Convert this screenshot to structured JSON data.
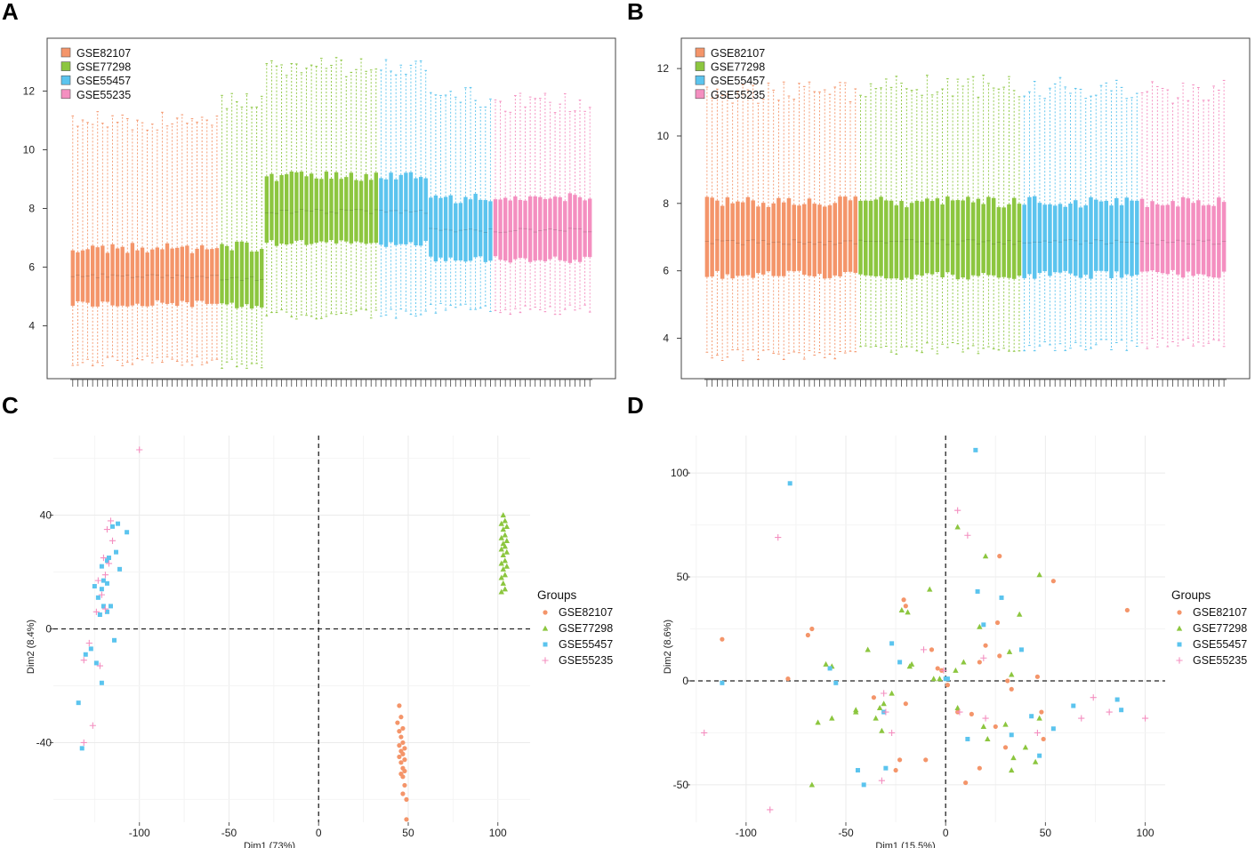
{
  "panel_labels": [
    "A",
    "B",
    "C",
    "D"
  ],
  "groups": [
    {
      "name": "GSE82107",
      "color": "#F4956A"
    },
    {
      "name": "GSE77298",
      "color": "#8CC63F"
    },
    {
      "name": "GSE55457",
      "color": "#5BC4EE"
    },
    {
      "name": "GSE55235",
      "color": "#F48FC0"
    }
  ],
  "chart_data": [
    {
      "panel": "A",
      "type": "boxplot",
      "title": "",
      "xlabel": "",
      "ylabel": "",
      "ylim": [
        2.2,
        13.8
      ],
      "yticks": [
        4,
        6,
        8,
        10,
        12
      ],
      "legend_position": "top-left",
      "series": [
        {
          "name": "GSE82107",
          "n": 30,
          "median": 5.7,
          "q1": 4.75,
          "q3": 6.65,
          "whisker_low": 2.8,
          "whisker_high": 11.0
        },
        {
          "name": "GSE77298",
          "n": 9,
          "median": 5.6,
          "q1": 4.7,
          "q3": 6.7,
          "whisker_low": 2.7,
          "whisker_high": 11.7
        },
        {
          "name": "GSE77298",
          "n": 23,
          "median": 7.9,
          "q1": 6.8,
          "q3": 9.1,
          "whisker_low": 4.4,
          "whisker_high": 12.8
        },
        {
          "name": "GSE55457",
          "n": 10,
          "median": 7.9,
          "q1": 6.8,
          "q3": 9.1,
          "whisker_low": 4.4,
          "whisker_high": 12.9
        },
        {
          "name": "GSE55457",
          "n": 13,
          "median": 7.25,
          "q1": 6.25,
          "q3": 8.35,
          "whisker_low": 4.6,
          "whisker_high": 11.8
        },
        {
          "name": "GSE55235",
          "n": 20,
          "median": 7.25,
          "q1": 6.25,
          "q3": 8.35,
          "whisker_low": 4.55,
          "whisker_high": 11.6
        }
      ]
    },
    {
      "panel": "B",
      "type": "boxplot",
      "title": "",
      "xlabel": "",
      "ylabel": "",
      "ylim": [
        2.8,
        12.9
      ],
      "yticks": [
        4,
        6,
        8,
        10,
        12
      ],
      "legend_position": "top-left",
      "series": [
        {
          "name": "GSE82107",
          "n": 30,
          "median": 6.85,
          "q1": 5.88,
          "q3": 8.05,
          "whisker_low": 3.5,
          "whisker_high": 11.3
        },
        {
          "name": "GSE77298",
          "n": 32,
          "median": 6.85,
          "q1": 5.85,
          "q3": 8.05,
          "whisker_low": 3.7,
          "whisker_high": 11.5
        },
        {
          "name": "GSE55457",
          "n": 23,
          "median": 6.85,
          "q1": 5.88,
          "q3": 8.05,
          "whisker_low": 3.8,
          "whisker_high": 11.4
        },
        {
          "name": "GSE55235",
          "n": 17,
          "median": 6.85,
          "q1": 5.9,
          "q3": 8.05,
          "whisker_low": 3.85,
          "whisker_high": 11.3
        }
      ]
    },
    {
      "panel": "C",
      "type": "scatter",
      "title": "",
      "xlabel": "Dim1 (73%)",
      "ylabel": "Dim2 (8.4%)",
      "xlim": [
        -148,
        118
      ],
      "ylim": [
        -68,
        68
      ],
      "xticks": [
        -100,
        -50,
        0,
        50,
        100
      ],
      "yticks": [
        -40,
        0,
        40
      ],
      "legend_title": "Groups",
      "legend_position": "right",
      "series": [
        {
          "name": "GSE82107",
          "marker": "circle",
          "points": [
            [
              45,
              -27
            ],
            [
              46,
              -31
            ],
            [
              44,
              -33
            ],
            [
              47,
              -35
            ],
            [
              45,
              -36
            ],
            [
              46,
              -38
            ],
            [
              47,
              -40
            ],
            [
              45,
              -41
            ],
            [
              48,
              -42
            ],
            [
              46,
              -43
            ],
            [
              47,
              -44
            ],
            [
              45,
              -45
            ],
            [
              48,
              -46
            ],
            [
              46,
              -47
            ],
            [
              47,
              -49
            ],
            [
              48,
              -50
            ],
            [
              46,
              -51
            ],
            [
              47,
              -52
            ],
            [
              48,
              -55
            ],
            [
              47,
              -58
            ],
            [
              49,
              -60
            ],
            [
              49,
              -67
            ]
          ]
        },
        {
          "name": "GSE77298",
          "marker": "triangle",
          "points": [
            [
              103,
              40
            ],
            [
              104,
              38
            ],
            [
              102,
              37
            ],
            [
              105,
              36
            ],
            [
              103,
              35
            ],
            [
              104,
              33
            ],
            [
              102,
              32
            ],
            [
              105,
              31
            ],
            [
              103,
              30
            ],
            [
              104,
              29
            ],
            [
              102,
              28
            ],
            [
              105,
              27
            ],
            [
              103,
              26
            ],
            [
              104,
              24
            ],
            [
              102,
              23
            ],
            [
              105,
              22
            ],
            [
              103,
              21
            ],
            [
              104,
              19
            ],
            [
              102,
              18
            ],
            [
              103,
              16
            ],
            [
              104,
              14
            ],
            [
              102,
              13
            ]
          ]
        },
        {
          "name": "GSE55457",
          "marker": "square",
          "points": [
            [
              -112,
              37
            ],
            [
              -107,
              34
            ],
            [
              -115,
              36
            ],
            [
              -113,
              27
            ],
            [
              -117,
              25
            ],
            [
              -118,
              24
            ],
            [
              -111,
              21
            ],
            [
              -121,
              22
            ],
            [
              -120,
              17
            ],
            [
              -118,
              16
            ],
            [
              -125,
              15
            ],
            [
              -121,
              14
            ],
            [
              -123,
              11
            ],
            [
              -116,
              8
            ],
            [
              -120,
              8
            ],
            [
              -118,
              6
            ],
            [
              -122,
              5
            ],
            [
              -114,
              -4
            ],
            [
              -127,
              -7
            ],
            [
              -124,
              -12
            ],
            [
              -130,
              -9
            ],
            [
              -121,
              -19
            ],
            [
              -134,
              -26
            ],
            [
              -132,
              -42
            ]
          ]
        },
        {
          "name": "GSE55235",
          "marker": "plus",
          "points": [
            [
              -100,
              63
            ],
            [
              -116,
              38
            ],
            [
              -118,
              35
            ],
            [
              -115,
              31
            ],
            [
              -120,
              25
            ],
            [
              -117,
              23
            ],
            [
              -119,
              19
            ],
            [
              -123,
              17
            ],
            [
              -121,
              12
            ],
            [
              -119,
              7
            ],
            [
              -124,
              6
            ],
            [
              -128,
              -5
            ],
            [
              -131,
              -11
            ],
            [
              -122,
              -13
            ],
            [
              -126,
              -34
            ],
            [
              -131,
              -40
            ]
          ]
        }
      ]
    },
    {
      "panel": "D",
      "type": "scatter",
      "title": "",
      "xlabel": "Dim1 (15.5%)",
      "ylabel": "Dim2 (8.6%)",
      "xlim": [
        -128,
        110
      ],
      "ylim": [
        -68,
        118
      ],
      "xticks": [
        -100,
        -50,
        0,
        50,
        100
      ],
      "yticks": [
        -50,
        0,
        50,
        100
      ],
      "legend_title": "Groups",
      "legend_position": "right",
      "series": [
        {
          "name": "GSE82107",
          "marker": "circle",
          "points": [
            [
              91,
              34
            ],
            [
              54,
              48
            ],
            [
              27,
              60
            ],
            [
              -112,
              20
            ],
            [
              -79,
              1
            ],
            [
              -67,
              25
            ],
            [
              -69,
              22
            ],
            [
              -20,
              36
            ],
            [
              -21,
              39
            ],
            [
              -7,
              15
            ],
            [
              -4,
              6
            ],
            [
              -2,
              5
            ],
            [
              1,
              -2
            ],
            [
              17,
              9
            ],
            [
              26,
              28
            ],
            [
              20,
              17
            ],
            [
              27,
              12
            ],
            [
              31,
              0
            ],
            [
              33,
              -4
            ],
            [
              46,
              2
            ],
            [
              48,
              -15
            ],
            [
              49,
              -28
            ],
            [
              13,
              -16
            ],
            [
              25,
              -22
            ],
            [
              30,
              -32
            ],
            [
              6,
              -15
            ],
            [
              -20,
              -11
            ],
            [
              -36,
              -8
            ],
            [
              -23,
              -38
            ],
            [
              -10,
              -38
            ],
            [
              -25,
              -43
            ],
            [
              17,
              -42
            ],
            [
              10,
              -49
            ]
          ]
        },
        {
          "name": "GSE77298",
          "marker": "triangle",
          "points": [
            [
              47,
              51
            ],
            [
              20,
              60
            ],
            [
              6,
              74
            ],
            [
              -22,
              34
            ],
            [
              -8,
              44
            ],
            [
              -19,
              33
            ],
            [
              -39,
              15
            ],
            [
              -57,
              7
            ],
            [
              -60,
              8
            ],
            [
              -17,
              8
            ],
            [
              -18,
              7
            ],
            [
              -6,
              1
            ],
            [
              -3,
              1
            ],
            [
              5,
              5
            ],
            [
              9,
              9
            ],
            [
              17,
              26
            ],
            [
              37,
              32
            ],
            [
              32,
              14
            ],
            [
              33,
              3
            ],
            [
              -27,
              -6
            ],
            [
              -31,
              -11
            ],
            [
              -35,
              -18
            ],
            [
              -32,
              -24
            ],
            [
              -45,
              -14
            ],
            [
              -45,
              -15
            ],
            [
              -33,
              -13
            ],
            [
              -57,
              -18
            ],
            [
              -64,
              -20
            ],
            [
              -67,
              -50
            ],
            [
              6,
              -13
            ],
            [
              19,
              -22
            ],
            [
              30,
              -21
            ],
            [
              21,
              -28
            ],
            [
              47,
              -18
            ],
            [
              40,
              -32
            ],
            [
              45,
              -39
            ],
            [
              34,
              -37
            ],
            [
              33,
              -43
            ]
          ]
        },
        {
          "name": "GSE55457",
          "marker": "square",
          "points": [
            [
              15,
              111
            ],
            [
              -78,
              95
            ],
            [
              16,
              43
            ],
            [
              -27,
              18
            ],
            [
              -23,
              9
            ],
            [
              -58,
              6
            ],
            [
              -55,
              -1
            ],
            [
              -112,
              -1
            ],
            [
              0,
              1
            ],
            [
              1,
              1
            ],
            [
              19,
              27
            ],
            [
              28,
              40
            ],
            [
              38,
              15
            ],
            [
              86,
              -9
            ],
            [
              88,
              -14
            ],
            [
              54,
              -23
            ],
            [
              64,
              -12
            ],
            [
              43,
              -17
            ],
            [
              33,
              -26
            ],
            [
              47,
              -36
            ],
            [
              11,
              -28
            ],
            [
              -31,
              -15
            ],
            [
              -30,
              -42
            ],
            [
              -44,
              -43
            ],
            [
              -41,
              -50
            ]
          ]
        },
        {
          "name": "GSE55235",
          "marker": "plus",
          "points": [
            [
              -84,
              69
            ],
            [
              6,
              82
            ],
            [
              11,
              70
            ],
            [
              -11,
              15
            ],
            [
              -31,
              -6
            ],
            [
              -30,
              -15
            ],
            [
              -27,
              -25
            ],
            [
              -32,
              -48
            ],
            [
              -88,
              -62
            ],
            [
              -121,
              -25
            ],
            [
              -1,
              5
            ],
            [
              7,
              -15
            ],
            [
              20,
              -18
            ],
            [
              19,
              11
            ],
            [
              46,
              -25
            ],
            [
              74,
              -8
            ],
            [
              82,
              -15
            ],
            [
              68,
              -18
            ],
            [
              100,
              -18
            ]
          ]
        }
      ]
    }
  ]
}
